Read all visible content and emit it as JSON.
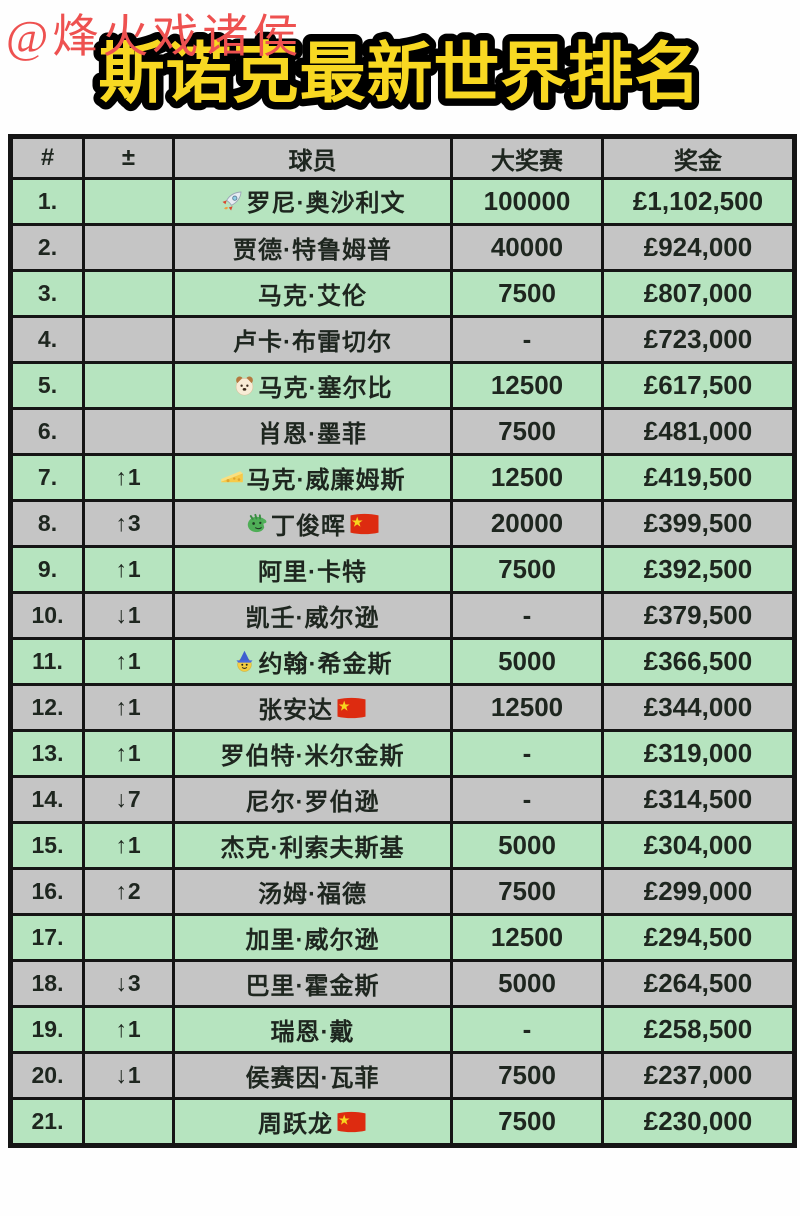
{
  "watermark": "@烽火戏诸侯",
  "title": "斯诺克最新世界排名",
  "colors": {
    "title_fill": "#f8d822",
    "title_outline": "#000000",
    "watermark_red": "#ee5150",
    "row_green": "#b6e4bf",
    "row_gray": "#c5c5c5",
    "text_dark": "#1e261f"
  },
  "table": {
    "columns": [
      "#",
      "±",
      "球员",
      "大奖赛",
      "奖金"
    ],
    "rows": [
      {
        "rank": "1.",
        "change": "",
        "icon": "rocket-icon",
        "player": "罗尼·奥沙利文",
        "flag": "",
        "event": "100000",
        "prize": "£1,102,500"
      },
      {
        "rank": "2.",
        "change": "",
        "icon": "",
        "player": "贾德·特鲁姆普",
        "flag": "",
        "event": "40000",
        "prize": "£924,000"
      },
      {
        "rank": "3.",
        "change": "",
        "icon": "",
        "player": "马克·艾伦",
        "flag": "",
        "event": "7500",
        "prize": "£807,000"
      },
      {
        "rank": "4.",
        "change": "",
        "icon": "",
        "player": "卢卡·布雷切尔",
        "flag": "",
        "event": "-",
        "prize": "£723,000"
      },
      {
        "rank": "5.",
        "change": "",
        "icon": "dog-icon",
        "player": "马克·塞尔比",
        "flag": "",
        "event": "12500",
        "prize": "£617,500"
      },
      {
        "rank": "6.",
        "change": "",
        "icon": "",
        "player": "肖恩·墨菲",
        "flag": "",
        "event": "7500",
        "prize": "£481,000"
      },
      {
        "rank": "7.",
        "change": "↑1",
        "icon": "cheese-icon",
        "player": "马克·威廉姆斯",
        "flag": "",
        "event": "12500",
        "prize": "£419,500"
      },
      {
        "rank": "8.",
        "change": "↑3",
        "icon": "dragon-icon",
        "player": "丁俊晖",
        "flag": "cn-flag-icon",
        "event": "20000",
        "prize": "£399,500"
      },
      {
        "rank": "9.",
        "change": "↑1",
        "icon": "",
        "player": "阿里·卡特",
        "flag": "",
        "event": "7500",
        "prize": "£392,500"
      },
      {
        "rank": "10.",
        "change": "↓1",
        "icon": "",
        "player": "凯壬·威尔逊",
        "flag": "",
        "event": "-",
        "prize": "£379,500"
      },
      {
        "rank": "11.",
        "change": "↑1",
        "icon": "wizard-icon",
        "player": "约翰·希金斯",
        "flag": "",
        "event": "5000",
        "prize": "£366,500"
      },
      {
        "rank": "12.",
        "change": "↑1",
        "icon": "",
        "player": "张安达",
        "flag": "cn-flag-icon",
        "event": "12500",
        "prize": "£344,000"
      },
      {
        "rank": "13.",
        "change": "↑1",
        "icon": "",
        "player": "罗伯特·米尔金斯",
        "flag": "",
        "event": "-",
        "prize": "£319,000"
      },
      {
        "rank": "14.",
        "change": "↓7",
        "icon": "",
        "player": "尼尔·罗伯逊",
        "flag": "",
        "event": "-",
        "prize": "£314,500"
      },
      {
        "rank": "15.",
        "change": "↑1",
        "icon": "",
        "player": "杰克·利索夫斯基",
        "flag": "",
        "event": "5000",
        "prize": "£304,000"
      },
      {
        "rank": "16.",
        "change": "↑2",
        "icon": "",
        "player": "汤姆·福德",
        "flag": "",
        "event": "7500",
        "prize": "£299,000"
      },
      {
        "rank": "17.",
        "change": "",
        "icon": "",
        "player": "加里·威尔逊",
        "flag": "",
        "event": "12500",
        "prize": "£294,500"
      },
      {
        "rank": "18.",
        "change": "↓3",
        "icon": "",
        "player": "巴里·霍金斯",
        "flag": "",
        "event": "5000",
        "prize": "£264,500"
      },
      {
        "rank": "19.",
        "change": "↑1",
        "icon": "",
        "player": "瑞恩·戴",
        "flag": "",
        "event": "-",
        "prize": "£258,500"
      },
      {
        "rank": "20.",
        "change": "↓1",
        "icon": "",
        "player": "侯赛因·瓦菲",
        "flag": "",
        "event": "7500",
        "prize": "£237,000"
      },
      {
        "rank": "21.",
        "change": "",
        "icon": "",
        "player": "周跃龙",
        "flag": "cn-flag-icon",
        "event": "7500",
        "prize": "£230,000"
      }
    ]
  }
}
